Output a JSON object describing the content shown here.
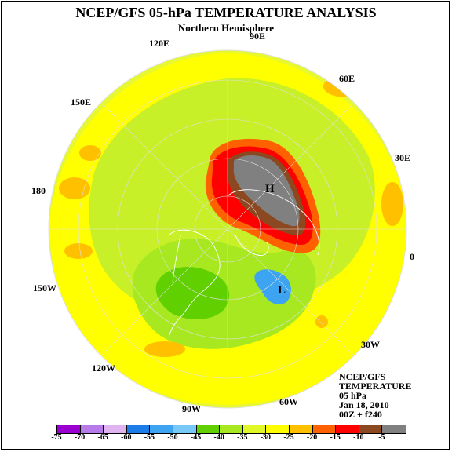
{
  "header": {
    "title": "NCEP/GFS 05-hPa TEMPERATURE ANALYSIS",
    "subtitle": "Northern Hemisphere"
  },
  "longitude_labels": {
    "e90": "90E",
    "e120": "120E",
    "e60": "60E",
    "e150": "150E",
    "e30": "30E",
    "d180": "180",
    "d0": "0",
    "w150": "150W",
    "w30": "30W",
    "w120": "120W",
    "w90": "90W",
    "w60": "60W"
  },
  "map_labels": {
    "high": "H",
    "low": "L"
  },
  "info": {
    "line1": "NCEP/GFS",
    "line2": "TEMPERATURE",
    "line3": "05 hPa",
    "line4": "Jan 18, 2010",
    "line5": "00Z + f240"
  },
  "colorbar": {
    "colors": [
      "#9a00d0",
      "#b87ae8",
      "#e0b4f0",
      "#1c7ce8",
      "#3ca4f0",
      "#78c8f8",
      "#60d000",
      "#a8e820",
      "#e0f828",
      "#ffff00",
      "#ffc000",
      "#ff6000",
      "#ff0000",
      "#8c4820",
      "#808080"
    ],
    "labels": [
      "-75",
      "-70",
      "-65",
      "-60",
      "-55",
      "-50",
      "-45",
      "-40",
      "-35",
      "-30",
      "-25",
      "-20",
      "-15",
      "-10",
      "-5"
    ]
  },
  "colors": {
    "background_field": "#e8f830",
    "warm_yellow": "#ffff00",
    "orange": "#ffc000",
    "green": "#a8e820",
    "dark_green": "#60d000",
    "light_blue": "#3ca4f0",
    "red": "#ff0000",
    "brown": "#8c4820",
    "grey": "#808080"
  }
}
